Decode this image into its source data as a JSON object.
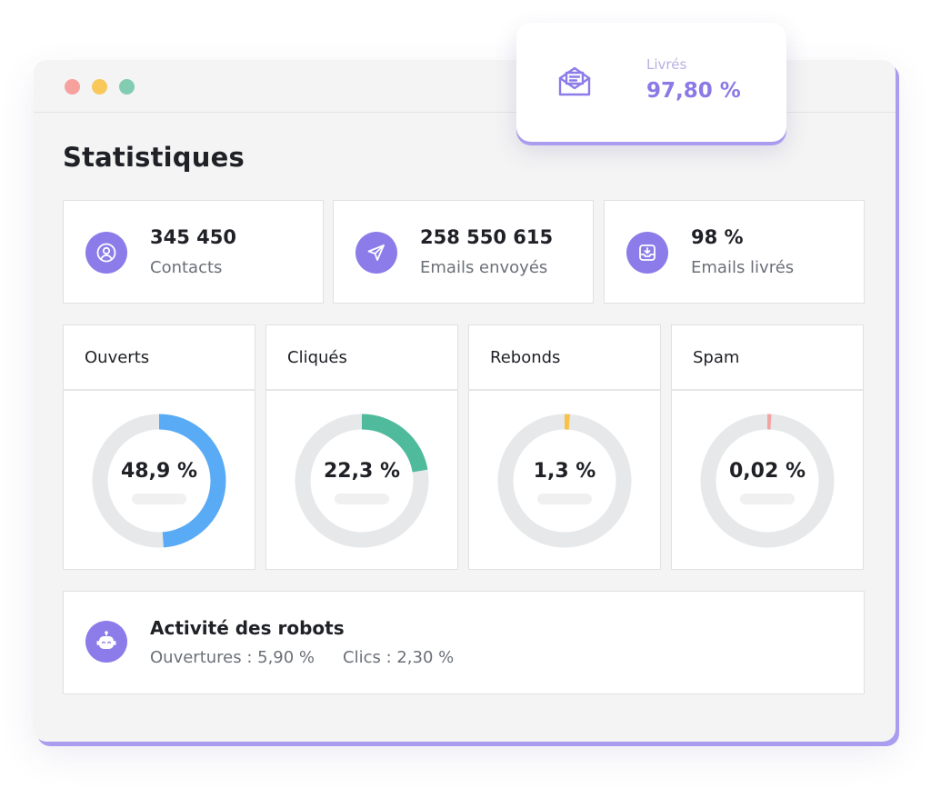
{
  "page_title": "Statistiques",
  "colors": {
    "accent": "#8c7ce9",
    "track": "#e6e8ea",
    "ouverts": "#5aabf6",
    "cliques": "#4fbb9c",
    "rebonds": "#f7c24a",
    "spam": "#f2a4a2"
  },
  "stats": [
    {
      "icon": "user-circle-icon",
      "value": "345 450",
      "label": "Contacts"
    },
    {
      "icon": "send-icon",
      "value": "258 550 615",
      "label": "Emails envoyés"
    },
    {
      "icon": "inbox-download-icon",
      "value": "98 %",
      "label": "Emails livrés"
    }
  ],
  "rates": [
    {
      "title": "Ouverts",
      "value_label": "48,9 %",
      "percent": 48.9,
      "color": "#5aabf6"
    },
    {
      "title": "Cliqués",
      "value_label": "22,3 %",
      "percent": 22.3,
      "color": "#4fbb9c"
    },
    {
      "title": "Rebonds",
      "value_label": "1,3 %",
      "percent": 1.3,
      "color": "#f7c24a"
    },
    {
      "title": "Spam",
      "value_label": "0,02 %",
      "percent": 0.02,
      "color": "#f2a4a2"
    }
  ],
  "robots": {
    "icon": "robot-icon",
    "title": "Activité des robots",
    "openings": "Ouvertures : 5,90 %",
    "clicks": "Clics : 2,30 %"
  },
  "delivered_card": {
    "icon": "open-envelope-icon",
    "label": "Livrés",
    "value": "97,80 %"
  }
}
